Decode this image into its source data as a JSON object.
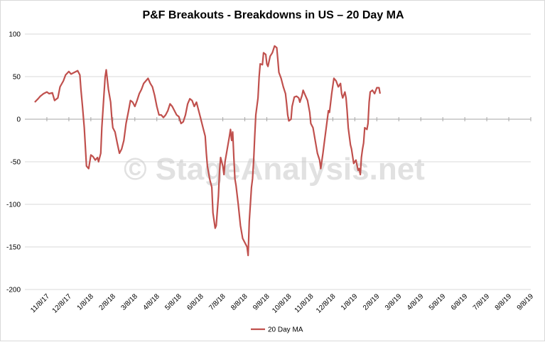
{
  "chart_data": {
    "type": "line",
    "title": "P&F Breakouts - Breakdowns in US – 20 Day MA",
    "xlabel": "",
    "ylabel": "",
    "ylim": [
      -200,
      100
    ],
    "y_ticks": [
      100,
      50,
      0,
      -50,
      -100,
      -150,
      -200
    ],
    "x_tick_labels": [
      "11/8/17",
      "12/8/17",
      "1/8/18",
      "2/8/18",
      "3/8/18",
      "4/8/18",
      "5/8/18",
      "6/8/18",
      "7/8/18",
      "8/8/18",
      "9/8/18",
      "10/8/18",
      "11/8/18",
      "12/8/18",
      "1/8/19",
      "2/8/19",
      "3/8/19",
      "4/8/19",
      "5/8/19",
      "6/8/19",
      "7/8/19",
      "8/8/19",
      "9/8/19"
    ],
    "grid": true,
    "legend_position": "bottom",
    "watermark": "© StageAnalysis.net",
    "colors": {
      "line": "#c0504d",
      "grid": "#d9d9d9",
      "axis": "#a6a6a6"
    },
    "series": [
      {
        "name": "20 Day MA",
        "points": [
          [
            0.95,
            20
          ],
          [
            1.1,
            24
          ],
          [
            1.2,
            27
          ],
          [
            1.35,
            30
          ],
          [
            1.5,
            32
          ],
          [
            1.6,
            30
          ],
          [
            1.75,
            31
          ],
          [
            1.85,
            22
          ],
          [
            2.0,
            25
          ],
          [
            2.1,
            38
          ],
          [
            2.25,
            45
          ],
          [
            2.35,
            52
          ],
          [
            2.5,
            56
          ],
          [
            2.6,
            53
          ],
          [
            2.75,
            55
          ],
          [
            2.9,
            57
          ],
          [
            3.0,
            52
          ],
          [
            3.05,
            35
          ],
          [
            3.12,
            15
          ],
          [
            3.2,
            -10
          ],
          [
            3.3,
            -55
          ],
          [
            3.4,
            -58
          ],
          [
            3.5,
            -42
          ],
          [
            3.6,
            -44
          ],
          [
            3.7,
            -48
          ],
          [
            3.8,
            -45
          ],
          [
            3.85,
            -50
          ],
          [
            3.95,
            -40
          ],
          [
            4.0,
            -10
          ],
          [
            4.1,
            30
          ],
          [
            4.15,
            50
          ],
          [
            4.2,
            58
          ],
          [
            4.3,
            35
          ],
          [
            4.4,
            20
          ],
          [
            4.45,
            2
          ],
          [
            4.5,
            -10
          ],
          [
            4.6,
            -15
          ],
          [
            4.7,
            -28
          ],
          [
            4.8,
            -40
          ],
          [
            4.9,
            -35
          ],
          [
            5.0,
            -25
          ],
          [
            5.1,
            -5
          ],
          [
            5.2,
            8
          ],
          [
            5.3,
            22
          ],
          [
            5.4,
            20
          ],
          [
            5.5,
            15
          ],
          [
            5.6,
            22
          ],
          [
            5.7,
            30
          ],
          [
            5.8,
            35
          ],
          [
            5.9,
            42
          ],
          [
            6.0,
            45
          ],
          [
            6.1,
            48
          ],
          [
            6.2,
            42
          ],
          [
            6.3,
            38
          ],
          [
            6.4,
            28
          ],
          [
            6.5,
            15
          ],
          [
            6.6,
            5
          ],
          [
            6.7,
            5
          ],
          [
            6.8,
            2
          ],
          [
            6.9,
            5
          ],
          [
            7.0,
            10
          ],
          [
            7.1,
            18
          ],
          [
            7.2,
            15
          ],
          [
            7.3,
            10
          ],
          [
            7.4,
            5
          ],
          [
            7.5,
            3
          ],
          [
            7.6,
            -5
          ],
          [
            7.7,
            -3
          ],
          [
            7.8,
            5
          ],
          [
            7.9,
            18
          ],
          [
            8.0,
            24
          ],
          [
            8.1,
            22
          ],
          [
            8.2,
            15
          ],
          [
            8.3,
            20
          ],
          [
            8.4,
            10
          ],
          [
            8.5,
            0
          ],
          [
            8.6,
            -10
          ],
          [
            8.7,
            -20
          ],
          [
            8.75,
            -40
          ],
          [
            8.8,
            -55
          ],
          [
            8.9,
            -70
          ],
          [
            9.0,
            -80
          ],
          [
            9.05,
            -110
          ],
          [
            9.15,
            -128
          ],
          [
            9.2,
            -125
          ],
          [
            9.3,
            -90
          ],
          [
            9.35,
            -60
          ],
          [
            9.4,
            -45
          ],
          [
            9.5,
            -55
          ],
          [
            9.55,
            -65
          ],
          [
            9.6,
            -50
          ],
          [
            9.7,
            -35
          ],
          [
            9.8,
            -20
          ],
          [
            9.85,
            -12
          ],
          [
            9.9,
            -25
          ],
          [
            9.95,
            -15
          ],
          [
            10.0,
            -45
          ],
          [
            10.05,
            -70
          ],
          [
            10.1,
            -78
          ],
          [
            10.2,
            -100
          ],
          [
            10.3,
            -125
          ],
          [
            10.4,
            -140
          ],
          [
            10.5,
            -145
          ],
          [
            10.6,
            -150
          ],
          [
            10.65,
            -160
          ],
          [
            10.7,
            -120
          ],
          [
            10.8,
            -80
          ],
          [
            10.85,
            -70
          ],
          [
            10.9,
            -50
          ],
          [
            10.95,
            -20
          ],
          [
            11.0,
            5
          ],
          [
            11.1,
            25
          ],
          [
            11.15,
            50
          ],
          [
            11.2,
            65
          ],
          [
            11.3,
            64
          ],
          [
            11.35,
            78
          ],
          [
            11.45,
            76
          ],
          [
            11.5,
            65
          ],
          [
            11.55,
            62
          ],
          [
            11.65,
            74
          ],
          [
            11.75,
            78
          ],
          [
            11.85,
            86
          ],
          [
            11.95,
            84
          ],
          [
            12.0,
            70
          ],
          [
            12.05,
            55
          ],
          [
            12.15,
            48
          ],
          [
            12.25,
            38
          ],
          [
            12.35,
            30
          ],
          [
            12.4,
            18
          ],
          [
            12.45,
            5
          ],
          [
            12.5,
            -2
          ],
          [
            12.6,
            0
          ],
          [
            12.65,
            15
          ],
          [
            12.75,
            26
          ],
          [
            12.85,
            27
          ],
          [
            12.95,
            25
          ],
          [
            13.0,
            20
          ],
          [
            13.1,
            28
          ],
          [
            13.15,
            34
          ],
          [
            13.25,
            28
          ],
          [
            13.35,
            22
          ],
          [
            13.45,
            8
          ],
          [
            13.5,
            -5
          ],
          [
            13.6,
            -10
          ],
          [
            13.7,
            -25
          ],
          [
            13.8,
            -40
          ],
          [
            13.9,
            -48
          ],
          [
            13.95,
            -58
          ],
          [
            14.05,
            -40
          ],
          [
            14.1,
            -30
          ],
          [
            14.2,
            -10
          ],
          [
            14.3,
            10
          ],
          [
            14.35,
            8
          ],
          [
            14.45,
            30
          ],
          [
            14.55,
            48
          ],
          [
            14.65,
            45
          ],
          [
            14.75,
            38
          ],
          [
            14.85,
            42
          ],
          [
            14.9,
            30
          ],
          [
            14.95,
            25
          ],
          [
            15.05,
            32
          ],
          [
            15.1,
            25
          ],
          [
            15.15,
            10
          ],
          [
            15.2,
            -10
          ],
          [
            15.3,
            -30
          ],
          [
            15.35,
            -35
          ],
          [
            15.45,
            -52
          ],
          [
            15.55,
            -48
          ],
          [
            15.65,
            -60
          ],
          [
            15.7,
            -58
          ],
          [
            15.75,
            -65
          ],
          [
            15.8,
            -45
          ],
          [
            15.85,
            -35
          ],
          [
            15.9,
            -28
          ],
          [
            15.95,
            -10
          ],
          [
            16.05,
            -12
          ],
          [
            16.1,
            -5
          ],
          [
            16.15,
            20
          ],
          [
            16.2,
            32
          ],
          [
            16.3,
            34
          ],
          [
            16.4,
            30
          ],
          [
            16.5,
            37
          ],
          [
            16.6,
            37
          ],
          [
            16.65,
            30
          ]
        ]
      }
    ]
  }
}
